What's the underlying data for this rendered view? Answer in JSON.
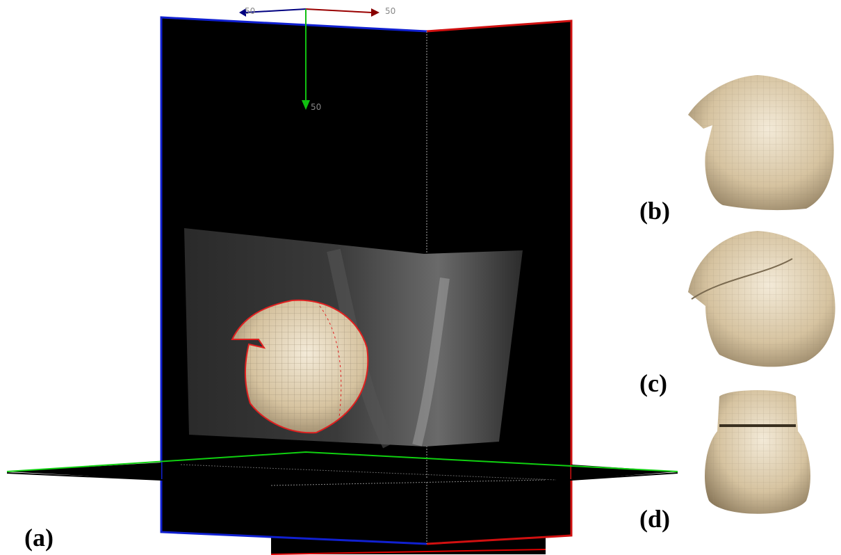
{
  "axes": {
    "left_label": "50",
    "right_label": "50",
    "down_label": "50"
  },
  "panels": {
    "a": "(a)",
    "b": "(b)",
    "c": "(c)",
    "d": "(d)"
  }
}
